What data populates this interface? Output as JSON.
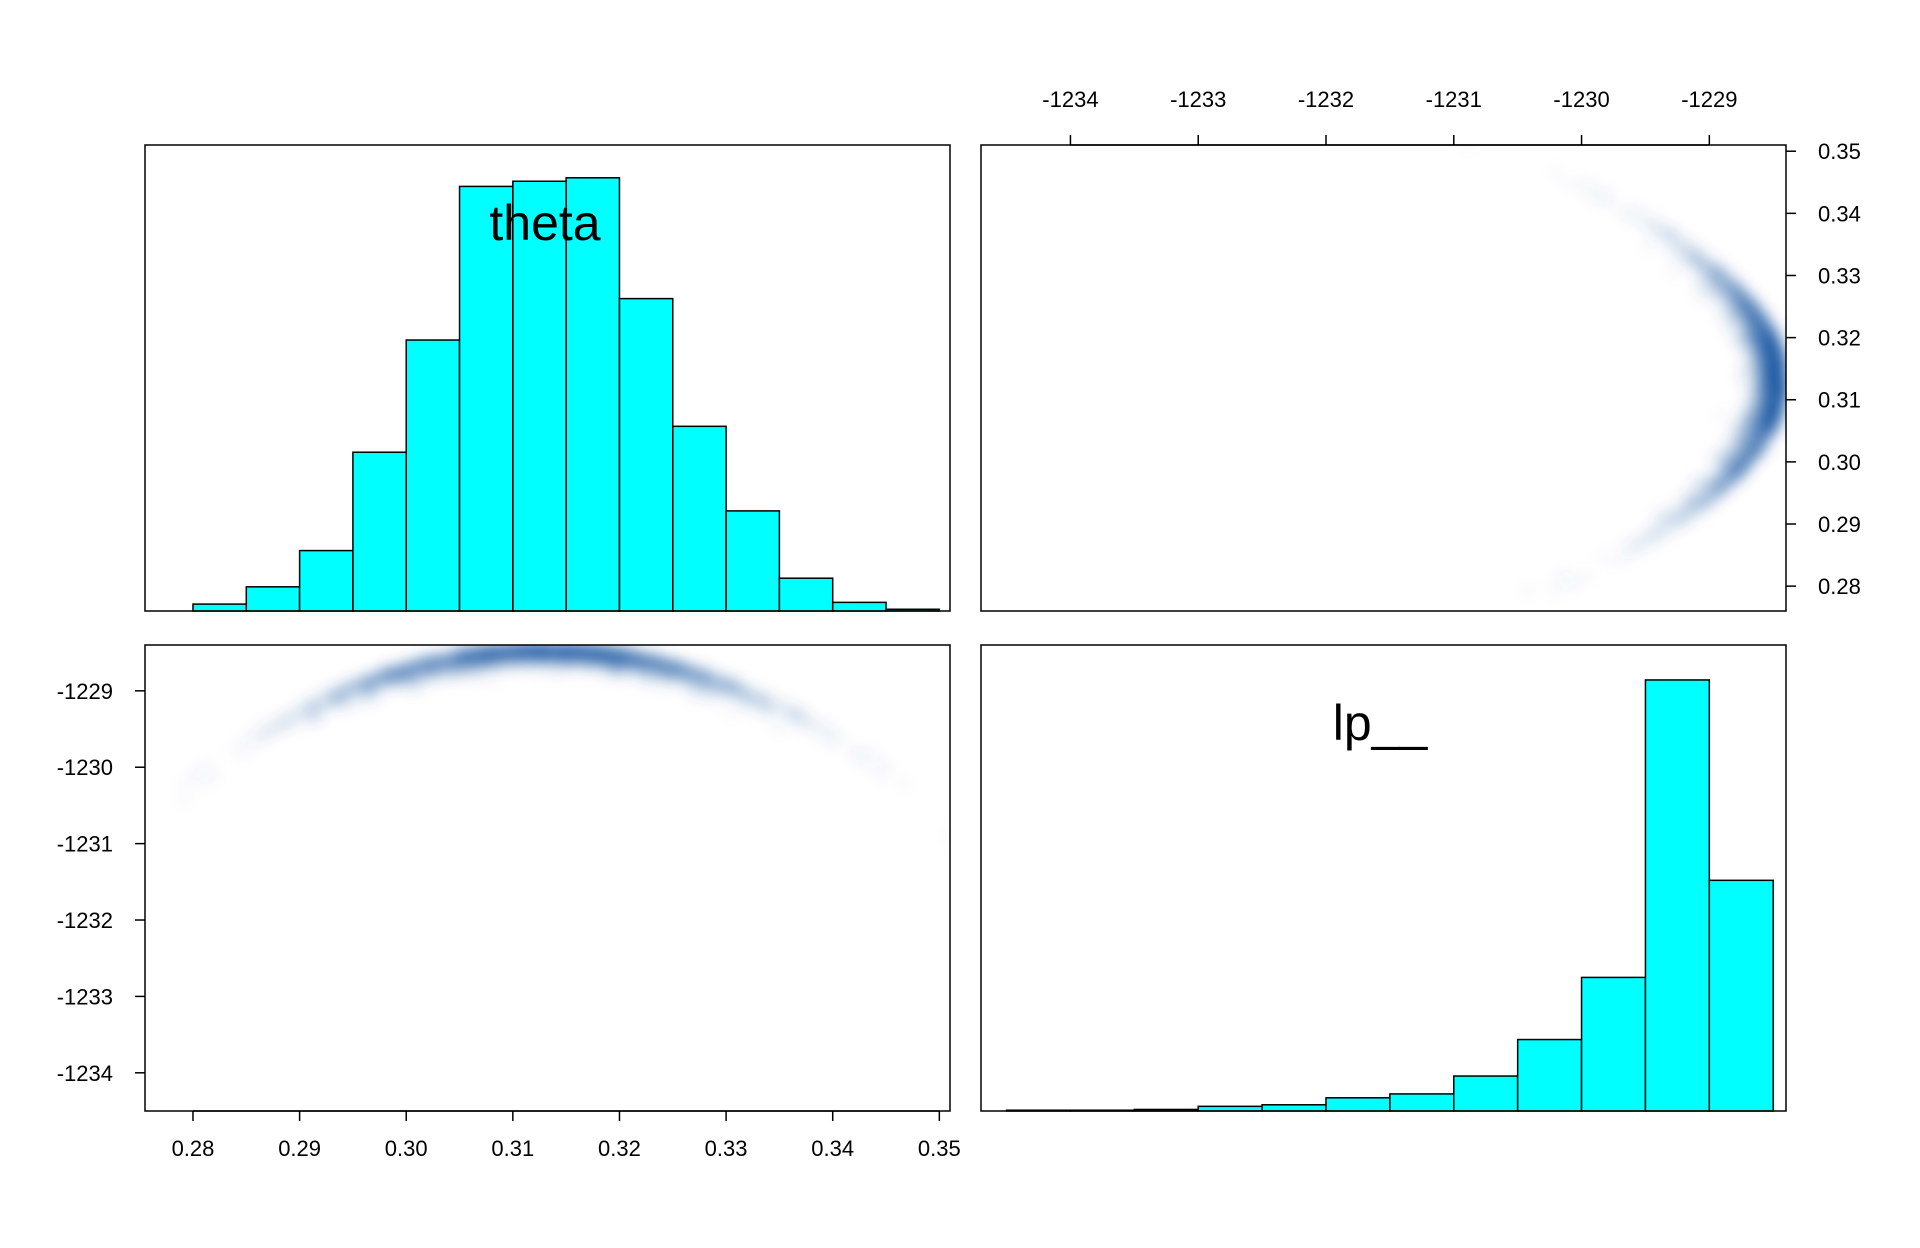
{
  "chart_data": {
    "type": "pairs",
    "colors": {
      "hist_fill": "#00ffff",
      "hist_stroke": "#000000",
      "density": "#08519c",
      "frame": "#000000",
      "background": "#ffffff"
    },
    "variables": [
      "theta",
      "lp__"
    ],
    "panels": [
      {
        "id": "theta-histogram",
        "type": "bar",
        "title": "theta",
        "bin_edges": [
          0.28,
          0.285,
          0.29,
          0.295,
          0.3,
          0.305,
          0.31,
          0.315,
          0.32,
          0.325,
          0.33,
          0.335,
          0.34,
          0.345,
          0.35
        ],
        "counts": [
          4,
          14,
          35,
          92,
          157,
          246,
          249,
          251,
          181,
          107,
          58,
          19,
          5,
          1
        ],
        "xlim": [
          0.2755,
          0.351
        ],
        "ylim": [
          0,
          270
        ]
      },
      {
        "id": "lp-vs-theta-density",
        "type": "heatmap",
        "xlim": [
          0.2755,
          0.351
        ],
        "ylim": [
          -1234.5,
          -1228.4
        ],
        "x_ticks": [
          "0.28",
          "0.29",
          "0.30",
          "0.31",
          "0.32",
          "0.33",
          "0.34",
          "0.35"
        ],
        "y_ticks": [
          "-1229",
          "-1230",
          "-1231",
          "-1232",
          "-1233",
          "-1234"
        ],
        "x_tick_values": [
          0.28,
          0.29,
          0.3,
          0.31,
          0.32,
          0.33,
          0.34,
          0.35
        ],
        "y_tick_values": [
          -1229,
          -1230,
          -1231,
          -1232,
          -1233,
          -1234
        ],
        "relationship": {
          "peak_x": 0.313,
          "peak_y": -1228.4,
          "curvature": 155000
        }
      },
      {
        "id": "theta-vs-lp-density",
        "type": "heatmap",
        "xlim": [
          -1234.7,
          -1228.4
        ],
        "ylim": [
          0.276,
          0.351
        ],
        "x_ticks": [
          "-1234",
          "-1233",
          "-1232",
          "-1231",
          "-1230",
          "-1229"
        ],
        "y_ticks": [
          "0.35",
          "0.34",
          "0.33",
          "0.32",
          "0.31",
          "0.30",
          "0.29",
          "0.28"
        ],
        "x_tick_values": [
          -1234,
          -1233,
          -1232,
          -1231,
          -1230,
          -1229
        ],
        "y_tick_values": [
          0.35,
          0.34,
          0.33,
          0.32,
          0.31,
          0.3,
          0.29,
          0.28
        ]
      },
      {
        "id": "lp-histogram",
        "type": "bar",
        "title": "lp__",
        "bin_edges": [
          -1234.5,
          -1234.0,
          -1233.5,
          -1233.0,
          -1232.5,
          -1232.0,
          -1231.5,
          -1231.0,
          -1230.5,
          -1230.0,
          -1229.5,
          -1229.0,
          -1228.5
        ],
        "counts": [
          1,
          1,
          2,
          6,
          8,
          17,
          22,
          45,
          92,
          172,
          555,
          297
        ],
        "xlim": [
          -1234.7,
          -1228.4
        ],
        "ylim": [
          0,
          600
        ]
      }
    ]
  }
}
